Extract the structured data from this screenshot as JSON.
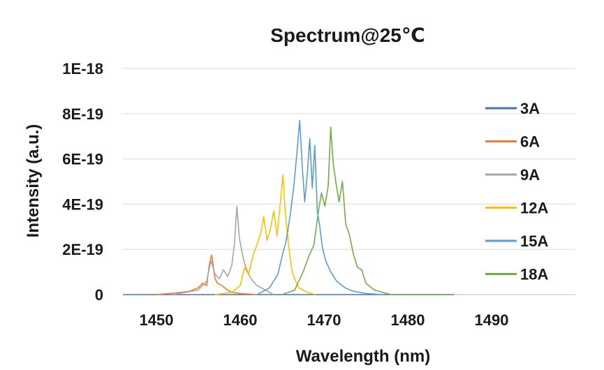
{
  "chart_data": {
    "type": "line",
    "title": "Spectrum@25℃",
    "xlabel": "Wavelength (nm)",
    "ylabel": "Intensity (a.u.)",
    "xlim": [
      1446,
      1500
    ],
    "ylim": [
      0,
      1e-18
    ],
    "x_ticks": [
      1450,
      1460,
      1470,
      1480,
      1490
    ],
    "x_tick_labels": [
      "1450",
      "1460",
      "1470",
      "1480",
      "1490"
    ],
    "y_ticks": [
      0,
      2e-19,
      4e-19,
      6e-19,
      8e-19,
      1e-18
    ],
    "y_tick_labels": [
      "0",
      "2E-19",
      "4E-19",
      "6E-19",
      "8E-19",
      "1E-18"
    ],
    "grid": true,
    "legend_position": "right",
    "series": [
      {
        "name": "3A",
        "color": "#4472C4",
        "x": [
          1446,
          1485.5
        ],
        "y": [
          0,
          0
        ]
      },
      {
        "name": "6A",
        "color": "#ED7D31",
        "x": [
          1450,
          1453,
          1454,
          1454.3,
          1455,
          1455.5,
          1456,
          1456.3,
          1456.6,
          1456.8,
          1457,
          1457.3,
          1457.8,
          1458.5,
          1459,
          1460,
          1462
        ],
        "y": [
          0,
          1e-20,
          1.5e-20,
          2e-20,
          3e-20,
          5e-20,
          4e-20,
          1.3e-19,
          1.75e-19,
          1.2e-19,
          7e-20,
          5e-20,
          4e-20,
          2e-20,
          1e-20,
          5e-21,
          0
        ]
      },
      {
        "name": "9A",
        "color": "#A5A5A5",
        "x": [
          1452,
          1455,
          1456,
          1456.5,
          1457,
          1457.5,
          1458,
          1458.5,
          1459,
          1459.3,
          1459.6,
          1459.9,
          1460.2,
          1460.5,
          1461,
          1461.5,
          1462,
          1463,
          1464
        ],
        "y": [
          0,
          2e-20,
          6e-20,
          1.5e-19,
          9e-20,
          7e-20,
          1.1e-19,
          8e-20,
          1.3e-19,
          2.2e-19,
          3.9e-19,
          2.5e-19,
          1.9e-19,
          1.4e-19,
          9e-20,
          6e-20,
          4e-20,
          2e-20,
          0
        ]
      },
      {
        "name": "12A",
        "color": "#FFC000",
        "x": [
          1457,
          1459,
          1460,
          1460.5,
          1461,
          1461.5,
          1462,
          1462.5,
          1462.8,
          1463.2,
          1463.6,
          1464,
          1464.4,
          1464.8,
          1465.1,
          1465.4,
          1465.8,
          1466.2,
          1466.6,
          1467,
          1468,
          1469
        ],
        "y": [
          0,
          1e-20,
          4e-20,
          1.2e-19,
          9e-20,
          1.7e-19,
          2.2e-19,
          2.8e-19,
          3.45e-19,
          2.4e-19,
          2.9e-19,
          3.7e-19,
          2.6e-19,
          4.1e-19,
          5.3e-19,
          3.5e-19,
          2.1e-19,
          1e-19,
          6e-20,
          3e-20,
          1e-20,
          0
        ]
      },
      {
        "name": "15A",
        "color": "#5B9BD5",
        "x": [
          1462,
          1463.5,
          1464.5,
          1465,
          1465.5,
          1466,
          1466.4,
          1466.8,
          1467.1,
          1467.4,
          1467.7,
          1468,
          1468.3,
          1468.6,
          1468.9,
          1469.2,
          1469.5,
          1469.8,
          1470.2,
          1470.8,
          1471.5,
          1472.5,
          1473.5,
          1475,
          1477
        ],
        "y": [
          0,
          3e-20,
          9e-20,
          1.7e-19,
          2.4e-19,
          3.6e-19,
          4.8e-19,
          6.4e-19,
          7.7e-19,
          5.7e-19,
          4.1e-19,
          5.3e-19,
          6.9e-19,
          4.7e-19,
          6.6e-19,
          3.7e-19,
          3e-19,
          2.1e-19,
          1.5e-19,
          1e-19,
          6e-20,
          3e-20,
          1.5e-20,
          5e-21,
          0
        ]
      },
      {
        "name": "18A",
        "color": "#70AD47",
        "x": [
          1465,
          1466.5,
          1467.5,
          1468.2,
          1468.8,
          1469.3,
          1469.7,
          1470.1,
          1470.5,
          1470.8,
          1471.1,
          1471.4,
          1471.8,
          1472.2,
          1472.6,
          1473,
          1473.5,
          1474,
          1474.5,
          1475,
          1476,
          1478,
          1485.5
        ],
        "y": [
          0,
          2e-20,
          1e-19,
          1.7e-19,
          2.2e-19,
          3.6e-19,
          4.5e-19,
          3.9e-19,
          4.8e-19,
          7.4e-19,
          5.8e-19,
          5e-19,
          4.1e-19,
          5e-19,
          3.1e-19,
          2.7e-19,
          1.8e-19,
          1.2e-19,
          1.1e-19,
          5e-20,
          2e-20,
          0,
          0
        ]
      }
    ]
  }
}
